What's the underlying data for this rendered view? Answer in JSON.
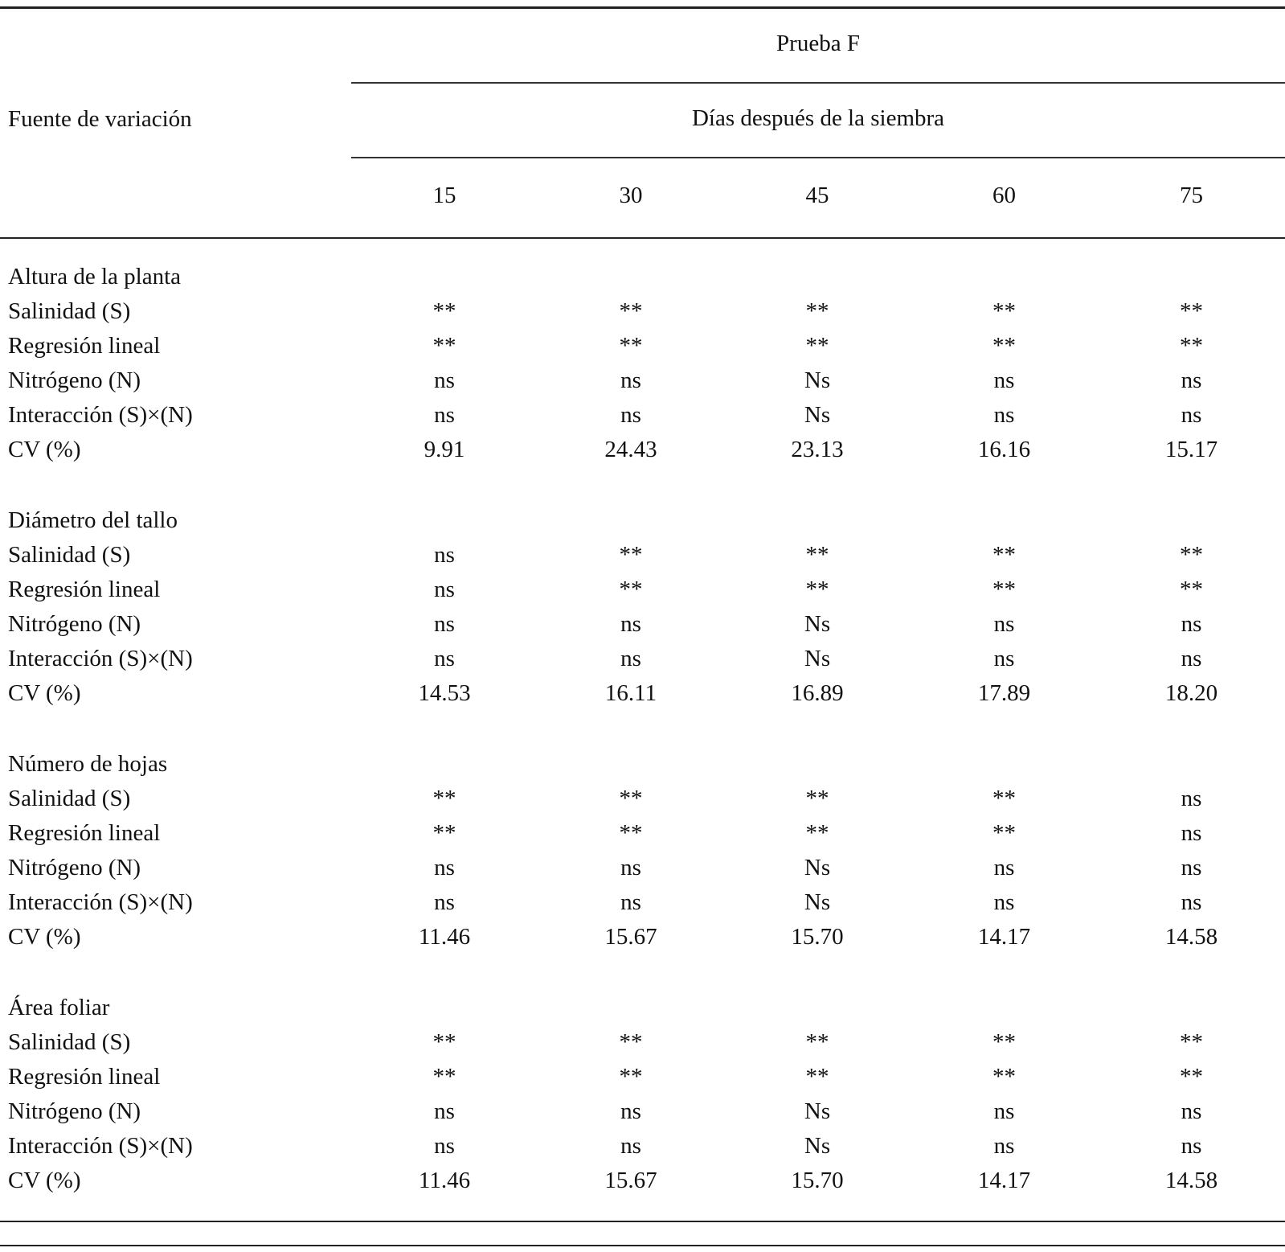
{
  "page": {
    "background_color": "#ffffff",
    "text_color": "#111111",
    "rule_color": "#222222"
  },
  "table": {
    "col_group_title": "Prueba F",
    "col_group_subtitle": "Días después de la siembra",
    "row_header": "Fuente de variación",
    "columns": [
      "15",
      "30",
      "45",
      "60",
      "75"
    ],
    "sections": [
      {
        "title": "Altura de la planta",
        "rows": [
          {
            "label": "Salinidad (S)",
            "values": [
              "**",
              "**",
              "**",
              "**",
              "**"
            ]
          },
          {
            "label": "Regresión lineal",
            "values": [
              "**",
              "**",
              "**",
              "**",
              "**"
            ]
          },
          {
            "label": "Nitrógeno (N)",
            "values": [
              "ns",
              "ns",
              "Ns",
              "ns",
              "ns"
            ]
          },
          {
            "label": "Interacción (S)×(N)",
            "values": [
              "ns",
              "ns",
              "Ns",
              "ns",
              "ns"
            ]
          },
          {
            "label": "CV (%)",
            "values": [
              "9.91",
              "24.43",
              "23.13",
              "16.16",
              "15.17"
            ]
          }
        ]
      },
      {
        "title": "Diámetro del tallo",
        "rows": [
          {
            "label": "Salinidad (S)",
            "values": [
              "ns",
              "**",
              "**",
              "**",
              "**"
            ]
          },
          {
            "label": "Regresión lineal",
            "values": [
              "ns",
              "**",
              "**",
              "**",
              "**"
            ]
          },
          {
            "label": "Nitrógeno (N)",
            "values": [
              "ns",
              "ns",
              "Ns",
              "ns",
              "ns"
            ]
          },
          {
            "label": "Interacción (S)×(N)",
            "values": [
              "ns",
              "ns",
              "Ns",
              "ns",
              "ns"
            ]
          },
          {
            "label": "CV (%)",
            "values": [
              "14.53",
              "16.11",
              "16.89",
              "17.89",
              "18.20"
            ]
          }
        ]
      },
      {
        "title": "Número de hojas",
        "rows": [
          {
            "label": "Salinidad (S)",
            "values": [
              "**",
              "**",
              "**",
              "**",
              "ns"
            ]
          },
          {
            "label": "Regresión lineal",
            "values": [
              "**",
              "**",
              "**",
              "**",
              "ns"
            ]
          },
          {
            "label": "Nitrógeno (N)",
            "values": [
              "ns",
              "ns",
              "Ns",
              "ns",
              "ns"
            ]
          },
          {
            "label": "Interacción (S)×(N)",
            "values": [
              "ns",
              "ns",
              "Ns",
              "ns",
              "ns"
            ]
          },
          {
            "label": "CV (%)",
            "values": [
              "11.46",
              "15.67",
              "15.70",
              "14.17",
              "14.58"
            ]
          }
        ]
      },
      {
        "title": "Área foliar",
        "rows": [
          {
            "label": "Salinidad (S)",
            "values": [
              "**",
              "**",
              "**",
              "**",
              "**"
            ]
          },
          {
            "label": "Regresión lineal",
            "values": [
              "**",
              "**",
              "**",
              "**",
              "**"
            ]
          },
          {
            "label": "Nitrógeno (N)",
            "values": [
              "ns",
              "ns",
              "Ns",
              "ns",
              "ns"
            ]
          },
          {
            "label": "Interacción (S)×(N)",
            "values": [
              "ns",
              "ns",
              "Ns",
              "ns",
              "ns"
            ]
          },
          {
            "label": "CV (%)",
            "values": [
              "11.46",
              "15.67",
              "15.70",
              "14.17",
              "14.58"
            ]
          }
        ]
      }
    ]
  }
}
